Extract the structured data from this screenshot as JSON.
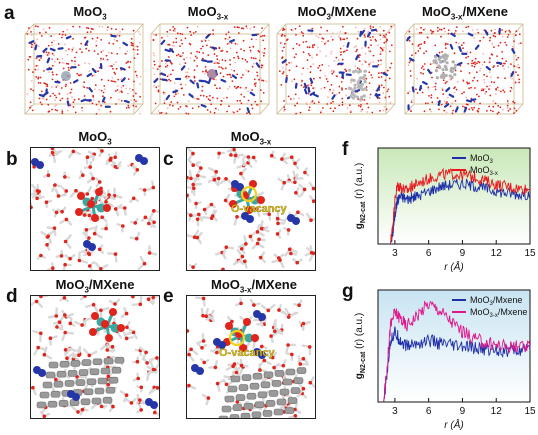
{
  "panels": {
    "a": "a",
    "b": "b",
    "c": "c",
    "d": "d",
    "e": "e",
    "f": "f",
    "g": "g"
  },
  "boxes": [
    {
      "base": "MoO",
      "sub": "3",
      "rest": ""
    },
    {
      "base": "MoO",
      "sub": "3-x",
      "rest": ""
    },
    {
      "base": "MoO",
      "sub": "3",
      "rest": "/MXene"
    },
    {
      "base": "MoO",
      "sub": "3-x",
      "rest": "/MXene"
    }
  ],
  "snapshots": {
    "b": {
      "base": "MoO",
      "sub": "3",
      "rest": ""
    },
    "c": {
      "base": "MoO",
      "sub": "3-x",
      "rest": "",
      "annotation": "O-vacancy"
    },
    "d": {
      "base": "MoO",
      "sub": "3",
      "rest": "/MXene"
    },
    "e": {
      "base": "MoO",
      "sub": "3-x",
      "rest": "/MXene",
      "annotation": "O-vacancy"
    }
  },
  "colors": {
    "water_red": "#e0241b",
    "water_white": "#d8d8d8",
    "nitrogen_blue": "#2536a8",
    "molybdenum_teal": "#3aa8a0",
    "mxene_gray": "#9a9a9a",
    "box_edge": "#c9b98a",
    "f_bg_top": "#c9e8b8",
    "g_bg_top": "#c8e4f2"
  },
  "chart_data": [
    {
      "panel": "f",
      "type": "line",
      "ylabel_main": "g",
      "ylabel_sub": "N2-cat",
      "ylabel_rest": "(r)  (a.u.)",
      "xlabel": "r (Å)",
      "xlim": [
        1.5,
        15
      ],
      "xticks": [
        3,
        6,
        9,
        12,
        15
      ],
      "background": "green-gradient",
      "legend_position": "top-right",
      "series": [
        {
          "name_main": "MoO",
          "name_sub": "3",
          "color": "#1f2fa8",
          "x": [
            2.6,
            2.8,
            3.0,
            3.2,
            3.5,
            4.0,
            4.5,
            5.0,
            6.0,
            7.0,
            8.0,
            9.0,
            10.0,
            11.0,
            12.0,
            13.0,
            14.0,
            15.0
          ],
          "y": [
            0.0,
            0.1,
            0.3,
            0.45,
            0.5,
            0.47,
            0.48,
            0.5,
            0.55,
            0.6,
            0.62,
            0.63,
            0.61,
            0.58,
            0.55,
            0.53,
            0.52,
            0.52
          ]
        },
        {
          "name_main": "MoO",
          "name_sub": "3-x",
          "color": "#e8161c",
          "x": [
            2.6,
            2.8,
            3.0,
            3.2,
            3.5,
            4.0,
            4.5,
            5.0,
            6.0,
            7.0,
            8.0,
            9.0,
            10.0,
            11.0,
            12.0,
            13.0,
            14.0,
            15.0
          ],
          "y": [
            0.0,
            0.18,
            0.45,
            0.6,
            0.6,
            0.55,
            0.6,
            0.63,
            0.68,
            0.72,
            0.73,
            0.72,
            0.7,
            0.66,
            0.62,
            0.6,
            0.58,
            0.57
          ]
        }
      ]
    },
    {
      "panel": "g",
      "type": "line",
      "ylabel_main": "g",
      "ylabel_sub": "N2-cat",
      "ylabel_rest": "(r)  (a.u.)",
      "xlabel": "r (Å)",
      "xlim": [
        1.5,
        15
      ],
      "xticks": [
        3,
        6,
        9,
        12,
        15
      ],
      "background": "blue-gradient",
      "legend_position": "top-right",
      "series": [
        {
          "name_main": "MoO",
          "name_sub": "3",
          "name_rest": "/Mxene",
          "color": "#1f2fa8",
          "x": [
            2.0,
            2.3,
            2.6,
            3.0,
            3.5,
            4.0,
            5.0,
            6.0,
            7.0,
            8.0,
            9.0,
            10.0,
            11.0,
            12.0,
            13.0,
            14.0,
            15.0
          ],
          "y": [
            0.0,
            0.25,
            0.55,
            0.62,
            0.55,
            0.5,
            0.52,
            0.55,
            0.52,
            0.5,
            0.49,
            0.48,
            0.47,
            0.47,
            0.46,
            0.46,
            0.46
          ]
        },
        {
          "name_main": "MoO",
          "name_sub": "3-x",
          "name_rest": "/Mxene",
          "color": "#e0168a",
          "x": [
            2.0,
            2.3,
            2.6,
            3.0,
            3.5,
            4.0,
            5.0,
            6.0,
            7.0,
            8.0,
            9.0,
            10.0,
            11.0,
            12.0,
            13.0,
            14.0,
            15.0
          ],
          "y": [
            0.0,
            0.3,
            0.68,
            0.8,
            0.75,
            0.68,
            0.78,
            0.88,
            0.82,
            0.72,
            0.63,
            0.57,
            0.53,
            0.51,
            0.5,
            0.49,
            0.48
          ]
        }
      ]
    }
  ]
}
